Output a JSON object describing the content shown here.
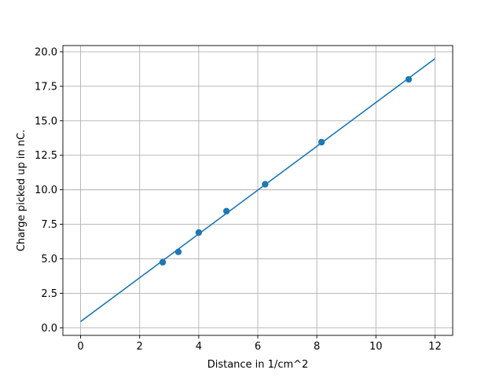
{
  "chart_data": {
    "type": "scatter",
    "title": "",
    "xlabel": "Distance in 1/cm^2",
    "ylabel": "Charge picked up in nC.",
    "xlim": [
      -0.6,
      12.6
    ],
    "ylim": [
      -0.55,
      20.45
    ],
    "xticks": [
      0,
      2,
      4,
      6,
      8,
      10,
      12
    ],
    "xtick_labels": [
      "0",
      "2",
      "4",
      "6",
      "8",
      "10",
      "12"
    ],
    "yticks": [
      0.0,
      2.5,
      5.0,
      7.5,
      10.0,
      12.5,
      15.0,
      17.5,
      20.0
    ],
    "ytick_labels": [
      "0.0",
      "2.5",
      "5.0",
      "7.5",
      "10.0",
      "12.5",
      "15.0",
      "17.5",
      "20.0"
    ],
    "grid": true,
    "color": "#1f77b4",
    "points": {
      "x": [
        2.78,
        3.31,
        4.0,
        4.94,
        6.25,
        8.16,
        11.11
      ],
      "y": [
        4.75,
        5.5,
        6.9,
        8.45,
        10.4,
        13.45,
        18.0
      ]
    },
    "fit_line": {
      "x": [
        0,
        12
      ],
      "y": [
        0.45,
        19.5
      ]
    }
  }
}
